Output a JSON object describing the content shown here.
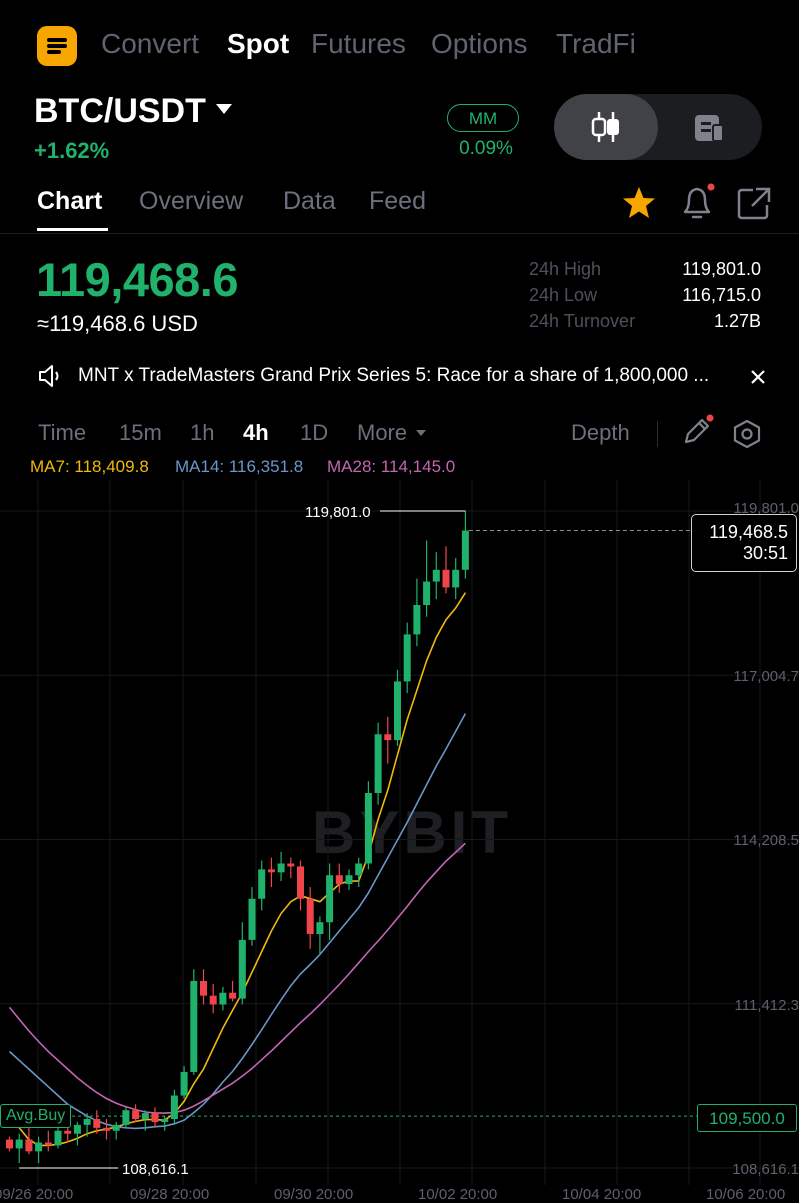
{
  "nav": {
    "tabs": [
      "Convert",
      "Spot",
      "Futures",
      "Options",
      "TradFi"
    ],
    "active": "Spot"
  },
  "pair": {
    "symbol": "BTC/USDT",
    "change_pct": "+1.62%",
    "mm_label": "MM",
    "mm_value": "0.09%"
  },
  "subtabs": [
    "Chart",
    "Overview",
    "Data",
    "Feed"
  ],
  "price": {
    "last": "119,468.6",
    "usd": "≈119,468.6 USD",
    "stats": [
      {
        "label": "24h High",
        "value": "119,801.0"
      },
      {
        "label": "24h Low",
        "value": "116,715.0"
      },
      {
        "label": "24h Turnover",
        "value": "1.27B"
      }
    ]
  },
  "announcement": "MNT x TradeMasters Grand Prix Series 5: Race for a share of 1,800,000 ...",
  "timeframes": [
    "Time",
    "15m",
    "1h",
    "4h",
    "1D",
    "More"
  ],
  "active_timeframe": "4h",
  "depth_label": "Depth",
  "ma": {
    "ma7": "MA7: 118,409.8",
    "ma14": "MA14: 116,351.8",
    "ma28": "MA28: 114,145.0",
    "colors": {
      "ma7": "#f0b90b",
      "ma14": "#6a97c8",
      "ma28": "#c565b3"
    }
  },
  "colors": {
    "up": "#20b26c",
    "down": "#ef454a",
    "accent": "#f7a600"
  },
  "chart_labels": {
    "high_marker": "119,801.0",
    "low_marker": "108,616.1",
    "current_price": "119,468.5",
    "countdown": "30:51",
    "avg_buy_label": "Avg.Buy",
    "avg_buy_price": "109,500.0",
    "watermark": "BYBIT",
    "y_axis": [
      "119,801.0",
      "117,004.7",
      "114,208.5",
      "111,412.3",
      "108,616.1"
    ],
    "x_axis": [
      "09/26 20:00",
      "09/28 20:00",
      "09/30 20:00",
      "10/02 20:00",
      "10/04 20:00",
      "10/06 20:00"
    ]
  },
  "chart_data": {
    "type": "candlestick",
    "interval": "4h",
    "y_ticks": [
      119801.0,
      117004.7,
      114208.5,
      111412.3,
      108616.1
    ],
    "high": 119801.0,
    "low": 108616.1,
    "current": 119468.5,
    "avg_buy": 109500.0,
    "candles": [
      [
        109100,
        109150,
        108900,
        108950
      ],
      [
        108950,
        109200,
        108700,
        109100
      ],
      [
        109100,
        109300,
        108850,
        108900
      ],
      [
        108900,
        109150,
        108700,
        109050
      ],
      [
        109050,
        109250,
        108900,
        109000
      ],
      [
        109000,
        109300,
        108950,
        109250
      ],
      [
        109250,
        109500,
        109050,
        109200
      ],
      [
        109200,
        109400,
        109000,
        109350
      ],
      [
        109350,
        109550,
        109150,
        109450
      ],
      [
        109450,
        109600,
        109200,
        109300
      ],
      [
        109300,
        109450,
        109100,
        109250
      ],
      [
        109250,
        109400,
        109100,
        109350
      ],
      [
        109350,
        109650,
        109300,
        109600
      ],
      [
        109600,
        109700,
        109400,
        109450
      ],
      [
        109450,
        109600,
        109250,
        109550
      ],
      [
        109550,
        109650,
        109300,
        109400
      ],
      [
        109400,
        109500,
        109250,
        109450
      ],
      [
        109450,
        109950,
        109350,
        109850
      ],
      [
        109850,
        110350,
        109800,
        110250
      ],
      [
        110250,
        112000,
        110200,
        111800
      ],
      [
        111800,
        112000,
        111400,
        111550
      ],
      [
        111550,
        111750,
        111250,
        111400
      ],
      [
        111400,
        111700,
        111300,
        111600
      ],
      [
        111600,
        111800,
        111450,
        111500
      ],
      [
        111500,
        112800,
        111400,
        112500
      ],
      [
        112500,
        113400,
        112400,
        113200
      ],
      [
        113200,
        113850,
        113000,
        113700
      ],
      [
        113700,
        113900,
        113400,
        113650
      ],
      [
        113650,
        114000,
        113500,
        113800
      ],
      [
        113800,
        113900,
        113550,
        113750
      ],
      [
        113750,
        113850,
        113000,
        113200
      ],
      [
        113200,
        113400,
        112350,
        112600
      ],
      [
        112600,
        112900,
        112250,
        112800
      ],
      [
        112800,
        113800,
        112500,
        113600
      ],
      [
        113600,
        113800,
        113300,
        113450
      ],
      [
        113450,
        113700,
        113350,
        113600
      ],
      [
        113600,
        113900,
        113400,
        113800
      ],
      [
        113800,
        115200,
        113700,
        115000
      ],
      [
        115000,
        116200,
        114800,
        116000
      ],
      [
        116000,
        116300,
        115500,
        115900
      ],
      [
        115900,
        117100,
        115800,
        116900
      ],
      [
        116900,
        117900,
        116700,
        117700
      ],
      [
        117700,
        118650,
        117500,
        118200
      ],
      [
        118200,
        119300,
        118000,
        118600
      ],
      [
        118600,
        119100,
        118300,
        118800
      ],
      [
        118800,
        119200,
        118400,
        118500
      ],
      [
        118500,
        119000,
        118300,
        118800
      ],
      [
        118800,
        119801,
        118650,
        119468.5
      ]
    ],
    "series": [
      {
        "name": "MA7",
        "values": [
          109500,
          109300,
          109100,
          109000,
          109000,
          109020,
          109060,
          109120,
          109200,
          109250,
          109280,
          109310,
          109370,
          109410,
          109440,
          109440,
          109430,
          109550,
          109750,
          110050,
          110300,
          110650,
          111000,
          111300,
          111600,
          111950,
          112300,
          112650,
          112950,
          113150,
          113250,
          113200,
          113150,
          113300,
          113450,
          113500,
          113500,
          113950,
          114550,
          115050,
          115650,
          116250,
          116750,
          117250,
          117650,
          117950,
          118150,
          118409.8
        ]
      },
      {
        "name": "MA14",
        "values": [
          110600,
          110450,
          110300,
          110150,
          110000,
          109850,
          109700,
          109600,
          109500,
          109420,
          109360,
          109320,
          109300,
          109290,
          109300,
          109320,
          109330,
          109370,
          109430,
          109560,
          109700,
          109880,
          110080,
          110260,
          110480,
          110720,
          110970,
          111230,
          111480,
          111720,
          111920,
          112080,
          112250,
          112450,
          112650,
          112850,
          113050,
          113300,
          113600,
          113900,
          114200,
          114500,
          114820,
          115140,
          115460,
          115750,
          116050,
          116351.8
        ]
      },
      {
        "name": "MA28",
        "values": [
          111350,
          111150,
          110950,
          110770,
          110600,
          110450,
          110300,
          110150,
          110020,
          109900,
          109800,
          109720,
          109660,
          109610,
          109570,
          109550,
          109550,
          109560,
          109600,
          109670,
          109760,
          109860,
          109960,
          110060,
          110180,
          110310,
          110460,
          110610,
          110770,
          110930,
          111090,
          111240,
          111400,
          111570,
          111740,
          111920,
          112110,
          112300,
          112480,
          112670,
          112870,
          113070,
          113280,
          113480,
          113660,
          113840,
          113990,
          114145.0
        ]
      }
    ]
  }
}
